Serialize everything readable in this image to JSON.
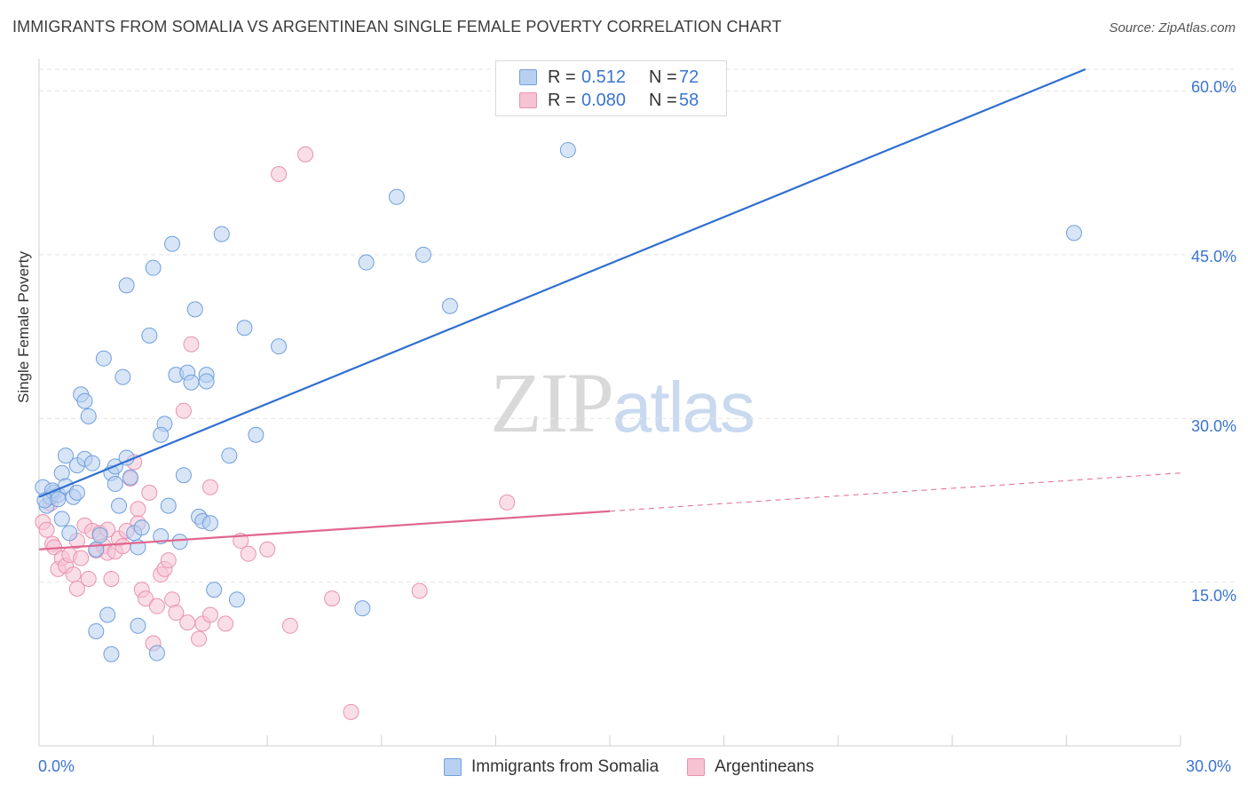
{
  "title": "IMMIGRANTS FROM SOMALIA VS ARGENTINEAN SINGLE FEMALE POVERTY CORRELATION CHART",
  "source": "Source: ZipAtlas.com",
  "watermark": {
    "zip": "ZIP",
    "atlas": "atlas"
  },
  "legend": {
    "r_label": "R =",
    "n_label": "N =",
    "series": [
      {
        "r": "0.512",
        "n": "72"
      },
      {
        "r": "0.080",
        "n": "58"
      }
    ]
  },
  "bottom_legend": [
    "Immigrants from Somalia",
    "Argentineans"
  ],
  "colors": {
    "blue_fill": "#b8d0f0",
    "blue_stroke": "#6f9fdc",
    "blue_line": "#2f6fd0",
    "pink_fill": "#f6c3d3",
    "pink_stroke": "#e892b0",
    "pink_line": "#e0668f",
    "tick_text": "#3b74d1",
    "grid": "#e4e4e4"
  },
  "chart_data": {
    "type": "scatter",
    "title": "IMMIGRANTS FROM SOMALIA VS ARGENTINEAN SINGLE FEMALE POVERTY CORRELATION CHART",
    "xlabel": "",
    "ylabel": "Single Female Poverty",
    "xlim": [
      0,
      30
    ],
    "ylim": [
      0,
      62
    ],
    "x_tick_labels": [
      "0.0%",
      "30.0%"
    ],
    "y_ticks": [
      15,
      30,
      45,
      60
    ],
    "y_tick_labels": [
      "15.0%",
      "30.0%",
      "45.0%",
      "60.0%"
    ],
    "grid": true,
    "legend_position": "top-center",
    "series": [
      {
        "name": "Immigrants from Somalia",
        "r": 0.512,
        "n": 72,
        "trend": {
          "x": [
            0,
            27.5
          ],
          "y": [
            22.8,
            62
          ],
          "dashed_from": null
        },
        "points": [
          [
            0.1,
            23.7
          ],
          [
            0.2,
            22.0
          ],
          [
            0.3,
            22.8
          ],
          [
            0.4,
            23.2
          ],
          [
            0.5,
            23.0
          ],
          [
            0.6,
            25.0
          ],
          [
            0.6,
            20.8
          ],
          [
            0.7,
            23.8
          ],
          [
            0.7,
            26.6
          ],
          [
            0.8,
            19.5
          ],
          [
            0.9,
            22.8
          ],
          [
            1.0,
            23.2
          ],
          [
            1.0,
            25.7
          ],
          [
            1.1,
            32.2
          ],
          [
            1.2,
            31.6
          ],
          [
            1.2,
            26.3
          ],
          [
            1.3,
            30.2
          ],
          [
            1.4,
            25.9
          ],
          [
            1.5,
            18.0
          ],
          [
            1.5,
            10.5
          ],
          [
            1.6,
            19.3
          ],
          [
            1.7,
            35.5
          ],
          [
            1.8,
            12.0
          ],
          [
            1.9,
            8.4
          ],
          [
            1.9,
            25.0
          ],
          [
            2.0,
            25.6
          ],
          [
            2.0,
            24.0
          ],
          [
            2.1,
            22.0
          ],
          [
            2.2,
            33.8
          ],
          [
            2.3,
            26.4
          ],
          [
            2.4,
            24.6
          ],
          [
            2.5,
            19.5
          ],
          [
            2.6,
            11.0
          ],
          [
            2.6,
            18.2
          ],
          [
            2.7,
            20.0
          ],
          [
            2.3,
            42.2
          ],
          [
            2.9,
            37.6
          ],
          [
            3.0,
            43.8
          ],
          [
            3.1,
            8.5
          ],
          [
            3.2,
            19.2
          ],
          [
            3.3,
            29.5
          ],
          [
            3.2,
            28.5
          ],
          [
            3.4,
            22.0
          ],
          [
            3.5,
            46.0
          ],
          [
            3.6,
            34.0
          ],
          [
            3.7,
            18.7
          ],
          [
            3.8,
            24.8
          ],
          [
            3.9,
            34.2
          ],
          [
            4.0,
            33.3
          ],
          [
            4.1,
            40.0
          ],
          [
            4.2,
            21.0
          ],
          [
            4.3,
            20.6
          ],
          [
            4.4,
            34.0
          ],
          [
            4.4,
            33.4
          ],
          [
            4.5,
            20.4
          ],
          [
            4.6,
            14.3
          ],
          [
            4.8,
            46.9
          ],
          [
            5.0,
            26.6
          ],
          [
            5.2,
            13.4
          ],
          [
            5.4,
            38.3
          ],
          [
            5.7,
            28.5
          ],
          [
            6.3,
            36.6
          ],
          [
            8.5,
            12.6
          ],
          [
            8.6,
            44.3
          ],
          [
            9.4,
            50.3
          ],
          [
            10.1,
            45.0
          ],
          [
            10.8,
            40.3
          ],
          [
            13.9,
            54.6
          ],
          [
            27.2,
            47.0
          ],
          [
            0.35,
            23.4
          ],
          [
            0.15,
            22.5
          ],
          [
            0.5,
            22.6
          ]
        ]
      },
      {
        "name": "Argentineans",
        "r": 0.08,
        "n": 58,
        "trend": {
          "x": [
            0,
            15
          ],
          "y": [
            18.0,
            21.5
          ],
          "dashed_to": [
            30,
            25.0
          ]
        },
        "points": [
          [
            0.1,
            20.5
          ],
          [
            0.2,
            19.8
          ],
          [
            0.3,
            22.2
          ],
          [
            0.35,
            18.5
          ],
          [
            0.4,
            18.2
          ],
          [
            0.5,
            16.2
          ],
          [
            0.6,
            17.2
          ],
          [
            0.7,
            16.5
          ],
          [
            0.8,
            17.5
          ],
          [
            0.9,
            15.7
          ],
          [
            1.0,
            18.8
          ],
          [
            1.0,
            14.4
          ],
          [
            1.1,
            17.2
          ],
          [
            1.2,
            20.2
          ],
          [
            1.3,
            15.3
          ],
          [
            1.4,
            19.7
          ],
          [
            1.5,
            17.9
          ],
          [
            1.6,
            19.5
          ],
          [
            1.7,
            18.3
          ],
          [
            1.8,
            19.8
          ],
          [
            1.8,
            17.7
          ],
          [
            1.9,
            15.3
          ],
          [
            2.0,
            17.8
          ],
          [
            2.1,
            19.0
          ],
          [
            2.2,
            18.3
          ],
          [
            2.3,
            19.7
          ],
          [
            2.4,
            24.5
          ],
          [
            2.5,
            26.0
          ],
          [
            2.6,
            20.4
          ],
          [
            2.6,
            21.7
          ],
          [
            2.7,
            14.3
          ],
          [
            2.8,
            13.5
          ],
          [
            2.9,
            23.2
          ],
          [
            3.0,
            9.4
          ],
          [
            3.1,
            12.8
          ],
          [
            3.2,
            15.7
          ],
          [
            3.3,
            16.2
          ],
          [
            3.4,
            17.0
          ],
          [
            3.5,
            13.4
          ],
          [
            3.6,
            12.2
          ],
          [
            3.8,
            30.7
          ],
          [
            3.9,
            11.3
          ],
          [
            4.0,
            36.8
          ],
          [
            4.2,
            9.8
          ],
          [
            4.3,
            11.2
          ],
          [
            4.5,
            23.7
          ],
          [
            4.5,
            12.0
          ],
          [
            4.9,
            11.2
          ],
          [
            5.3,
            18.8
          ],
          [
            5.5,
            17.6
          ],
          [
            6.0,
            18.0
          ],
          [
            6.3,
            52.4
          ],
          [
            6.6,
            11.0
          ],
          [
            7.0,
            54.2
          ],
          [
            7.7,
            13.5
          ],
          [
            8.2,
            3.1
          ],
          [
            10.0,
            14.2
          ],
          [
            12.3,
            22.3
          ]
        ]
      }
    ]
  }
}
